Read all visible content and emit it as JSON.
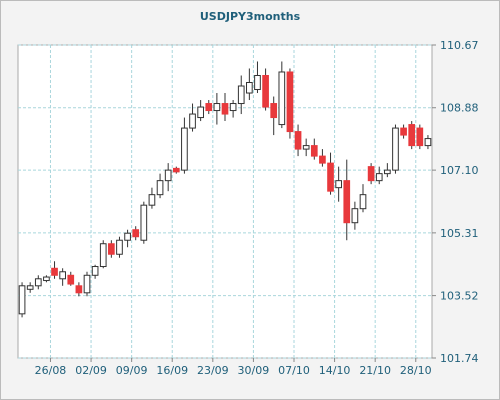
{
  "chart_data": {
    "type": "candlestick",
    "title": "USDJPY3months",
    "categories": [
      null,
      null,
      null,
      null,
      "26/08",
      null,
      null,
      null,
      null,
      "02/09",
      null,
      null,
      null,
      null,
      "09/09",
      null,
      null,
      null,
      null,
      "16/09",
      null,
      null,
      null,
      null,
      "23/09",
      null,
      null,
      null,
      null,
      "30/09",
      null,
      null,
      null,
      null,
      "07/10",
      null,
      null,
      null,
      null,
      "14/10",
      null,
      null,
      null,
      null,
      "21/10",
      null,
      null,
      null,
      null,
      "28/10",
      null
    ],
    "open": [
      103.0,
      103.7,
      103.8,
      103.95,
      104.3,
      104.0,
      104.1,
      103.8,
      103.6,
      104.1,
      104.35,
      105.0,
      104.7,
      105.1,
      105.4,
      105.1,
      106.1,
      106.4,
      106.8,
      107.15,
      107.1,
      108.3,
      108.6,
      109.0,
      108.8,
      109.0,
      108.8,
      109.0,
      109.3,
      109.4,
      109.8,
      109.0,
      108.4,
      109.9,
      108.2,
      107.7,
      107.8,
      107.5,
      107.3,
      106.6,
      106.8,
      105.6,
      106.0,
      107.2,
      106.8,
      107.0,
      107.1,
      108.3,
      108.4,
      108.3,
      107.8
    ],
    "high": [
      103.9,
      103.9,
      104.1,
      104.1,
      104.5,
      104.3,
      104.2,
      103.9,
      104.2,
      104.4,
      105.1,
      105.1,
      105.2,
      105.4,
      105.5,
      106.2,
      106.6,
      107.0,
      107.3,
      107.2,
      108.6,
      109.0,
      109.1,
      109.1,
      109.3,
      109.3,
      109.1,
      109.8,
      110.0,
      110.2,
      110.0,
      109.2,
      110.2,
      110.0,
      108.4,
      108.0,
      108.0,
      107.7,
      107.6,
      107.2,
      107.4,
      106.2,
      106.7,
      107.3,
      107.2,
      107.3,
      108.4,
      108.4,
      108.5,
      108.4,
      108.1
    ],
    "low": [
      102.9,
      103.6,
      103.7,
      103.9,
      104.0,
      103.8,
      103.8,
      103.5,
      103.5,
      104.0,
      104.3,
      104.6,
      104.6,
      104.9,
      105.1,
      105.0,
      106.0,
      106.3,
      106.5,
      107.0,
      107.0,
      108.2,
      108.5,
      108.7,
      108.4,
      108.5,
      108.6,
      108.7,
      109.1,
      109.3,
      108.8,
      108.1,
      108.3,
      108.0,
      107.5,
      107.5,
      107.4,
      107.2,
      106.4,
      106.2,
      105.1,
      105.4,
      105.9,
      106.7,
      106.7,
      106.9,
      107.0,
      108.0,
      107.7,
      107.7,
      107.7
    ],
    "close": [
      103.8,
      103.8,
      104.0,
      104.05,
      104.1,
      104.2,
      103.85,
      103.6,
      104.1,
      104.35,
      105.0,
      104.7,
      105.1,
      105.3,
      105.2,
      106.1,
      106.4,
      106.8,
      107.1,
      107.05,
      108.3,
      108.7,
      108.9,
      108.8,
      109.0,
      108.7,
      109.0,
      109.5,
      109.6,
      109.8,
      108.9,
      108.6,
      109.9,
      108.2,
      107.7,
      107.8,
      107.5,
      107.3,
      106.5,
      106.8,
      105.6,
      106.0,
      106.4,
      106.8,
      107.0,
      107.1,
      108.3,
      108.1,
      107.8,
      107.8,
      108.0
    ],
    "up_color": "#ffffff",
    "down_color": "#e8393c",
    "ylim": [
      101.74,
      110.67
    ],
    "yticks": [
      101.74,
      103.52,
      105.31,
      {
        "value": 107.1,
        "label": "107.10"
      },
      108.88,
      110.67
    ],
    "grid": true
  }
}
